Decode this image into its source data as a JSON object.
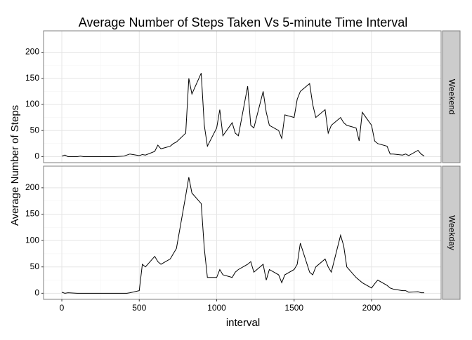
{
  "chart_data": {
    "type": "line",
    "title": "Average Number of Steps Taken Vs 5-minute Time Interval",
    "x_label": "interval",
    "y_label": "Average Number of Steps",
    "x": [
      0,
      20,
      40,
      100,
      120,
      140,
      200,
      220,
      240,
      300,
      320,
      340,
      400,
      420,
      440,
      500,
      520,
      540,
      600,
      620,
      640,
      700,
      720,
      740,
      800,
      820,
      840,
      900,
      920,
      940,
      1000,
      1020,
      1040,
      1100,
      1120,
      1140,
      1200,
      1220,
      1240,
      1300,
      1320,
      1340,
      1400,
      1420,
      1440,
      1500,
      1520,
      1540,
      1600,
      1620,
      1640,
      1700,
      1720,
      1740,
      1800,
      1820,
      1840,
      1900,
      1920,
      1940,
      2000,
      2020,
      2040,
      2100,
      2120,
      2140,
      2200,
      2220,
      2240,
      2300,
      2320,
      2340
    ],
    "xlim": [
      -118,
      2449
    ],
    "xticks": [
      0,
      500,
      1000,
      1500,
      2000
    ],
    "ylim": [
      -11.5,
      241
    ],
    "yticks": [
      0,
      50,
      100,
      150,
      200
    ],
    "grid": true,
    "color": "#000000",
    "series": [
      {
        "name": "Weekend",
        "values": [
          1,
          3,
          0,
          0,
          1,
          0,
          0,
          0,
          0,
          0,
          0,
          0,
          1,
          3,
          5,
          2,
          4,
          3,
          10,
          22,
          15,
          20,
          25,
          28,
          45,
          150,
          120,
          160,
          60,
          20,
          55,
          90,
          40,
          65,
          45,
          40,
          135,
          60,
          55,
          125,
          85,
          60,
          50,
          35,
          80,
          75,
          110,
          125,
          140,
          100,
          75,
          90,
          45,
          60,
          75,
          65,
          60,
          55,
          30,
          85,
          60,
          30,
          25,
          20,
          5,
          5,
          3,
          5,
          2,
          12,
          5,
          1
        ]
      },
      {
        "name": "Weekday",
        "values": [
          2,
          0,
          1,
          0,
          0,
          0,
          0,
          0,
          0,
          0,
          0,
          0,
          0,
          0,
          1,
          5,
          55,
          50,
          70,
          60,
          55,
          65,
          75,
          85,
          185,
          220,
          190,
          170,
          85,
          30,
          30,
          45,
          35,
          30,
          40,
          45,
          55,
          60,
          40,
          55,
          25,
          45,
          35,
          20,
          35,
          45,
          55,
          95,
          40,
          35,
          50,
          65,
          50,
          40,
          110,
          90,
          50,
          30,
          25,
          20,
          10,
          18,
          25,
          15,
          10,
          8,
          5,
          5,
          2,
          3,
          1,
          1
        ]
      }
    ]
  }
}
